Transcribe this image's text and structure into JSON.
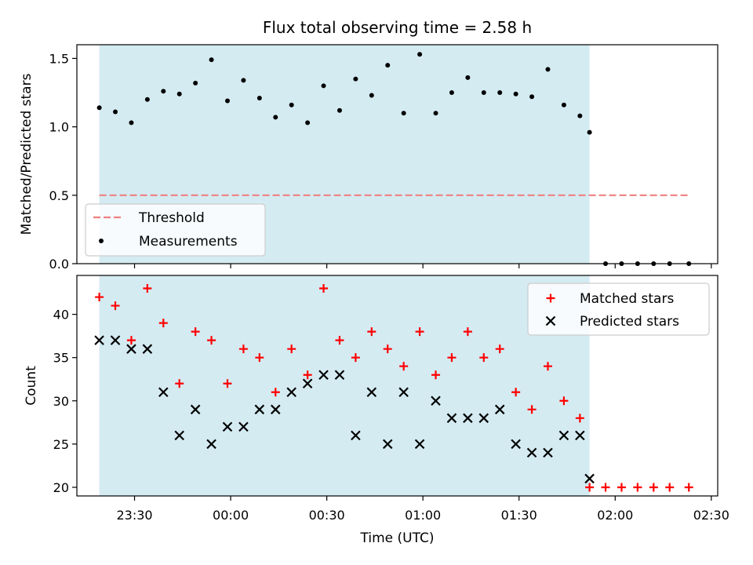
{
  "title": "Flux total observing time = 2.58 h",
  "xlabel": "Time (UTC)",
  "colors": {
    "observing_band": "#add8e6",
    "threshold": "#f08080",
    "measurements": "#000000",
    "matched": "#ff0000",
    "predicted": "#000000"
  },
  "chart_data": [
    {
      "type": "scatter",
      "ylabel": "Matched/Predicted stars",
      "ylim": [
        0,
        1.6
      ],
      "yticks": [
        0.0,
        0.5,
        1.0,
        1.5
      ],
      "ytick_labels": [
        "0.0",
        "0.5",
        "1.0",
        "1.5"
      ],
      "xlim": [
        "23:12",
        "02:32"
      ],
      "xticks": [
        "23:30",
        "00:00",
        "00:30",
        "01:00",
        "01:30",
        "02:00",
        "02:30"
      ],
      "observing_band": [
        "23:19",
        "01:52"
      ],
      "legend": {
        "placement": "lower-left",
        "entries": [
          "Threshold",
          "Measurements"
        ]
      },
      "series": [
        {
          "name": "Threshold",
          "style": "dashed-line",
          "x": [
            "23:19",
            "02:23"
          ],
          "y": [
            0.5,
            0.5
          ]
        },
        {
          "name": "Measurements",
          "style": "dot",
          "x": [
            "23:19",
            "23:24",
            "23:29",
            "23:34",
            "23:39",
            "23:44",
            "23:49",
            "23:54",
            "23:59",
            "00:04",
            "00:09",
            "00:14",
            "00:19",
            "00:24",
            "00:29",
            "00:34",
            "00:39",
            "00:44",
            "00:49",
            "00:54",
            "00:59",
            "01:04",
            "01:09",
            "01:14",
            "01:19",
            "01:24",
            "01:29",
            "01:34",
            "01:39",
            "01:44",
            "01:49",
            "01:52",
            "01:57",
            "02:02",
            "02:07",
            "02:12",
            "02:17",
            "02:23"
          ],
          "y": [
            1.14,
            1.11,
            1.03,
            1.2,
            1.26,
            1.24,
            1.32,
            1.49,
            1.19,
            1.34,
            1.21,
            1.07,
            1.16,
            1.03,
            1.3,
            1.12,
            1.35,
            1.23,
            1.45,
            1.1,
            1.53,
            1.1,
            1.25,
            1.36,
            1.25,
            1.25,
            1.24,
            1.22,
            1.42,
            1.16,
            1.08,
            0.96,
            0.0,
            0.0,
            0.0,
            0.0,
            0.0,
            0.0
          ]
        }
      ]
    },
    {
      "type": "scatter",
      "ylabel": "Count",
      "ylim": [
        19,
        44.5
      ],
      "yticks": [
        20,
        25,
        30,
        35,
        40
      ],
      "ytick_labels": [
        "20",
        "25",
        "30",
        "35",
        "40"
      ],
      "xlim": [
        "23:12",
        "02:32"
      ],
      "xticks": [
        "23:30",
        "00:00",
        "00:30",
        "01:00",
        "01:30",
        "02:00",
        "02:30"
      ],
      "observing_band": [
        "23:19",
        "01:52"
      ],
      "legend": {
        "placement": "top-right",
        "entries": [
          "Matched stars",
          "Predicted stars"
        ]
      },
      "series": [
        {
          "name": "Matched stars",
          "style": "plus",
          "x": [
            "23:19",
            "23:24",
            "23:29",
            "23:34",
            "23:39",
            "23:44",
            "23:49",
            "23:54",
            "23:59",
            "00:04",
            "00:09",
            "00:14",
            "00:19",
            "00:24",
            "00:29",
            "00:34",
            "00:39",
            "00:44",
            "00:49",
            "00:54",
            "00:59",
            "01:04",
            "01:09",
            "01:14",
            "01:19",
            "01:24",
            "01:29",
            "01:34",
            "01:39",
            "01:44",
            "01:49",
            "01:52",
            "01:57",
            "02:02",
            "02:07",
            "02:12",
            "02:17",
            "02:23"
          ],
          "y": [
            42,
            41,
            37,
            43,
            39,
            32,
            38,
            37,
            32,
            36,
            35,
            31,
            36,
            33,
            43,
            37,
            35,
            38,
            36,
            34,
            38,
            33,
            35,
            38,
            35,
            36,
            31,
            29,
            34,
            30,
            28,
            20,
            20,
            20,
            20,
            20,
            20,
            20
          ]
        },
        {
          "name": "Predicted stars",
          "style": "x",
          "x": [
            "23:19",
            "23:24",
            "23:29",
            "23:34",
            "23:39",
            "23:44",
            "23:49",
            "23:54",
            "23:59",
            "00:04",
            "00:09",
            "00:14",
            "00:19",
            "00:24",
            "00:29",
            "00:34",
            "00:39",
            "00:44",
            "00:49",
            "00:54",
            "00:59",
            "01:04",
            "01:09",
            "01:14",
            "01:19",
            "01:24",
            "01:29",
            "01:34",
            "01:39",
            "01:44",
            "01:49",
            "01:52"
          ],
          "y": [
            37,
            37,
            36,
            36,
            31,
            26,
            29,
            25,
            27,
            27,
            29,
            29,
            31,
            32,
            33,
            33,
            26,
            31,
            25,
            31,
            25,
            30,
            28,
            28,
            28,
            29,
            25,
            24,
            24,
            26,
            26,
            21
          ]
        }
      ]
    }
  ]
}
